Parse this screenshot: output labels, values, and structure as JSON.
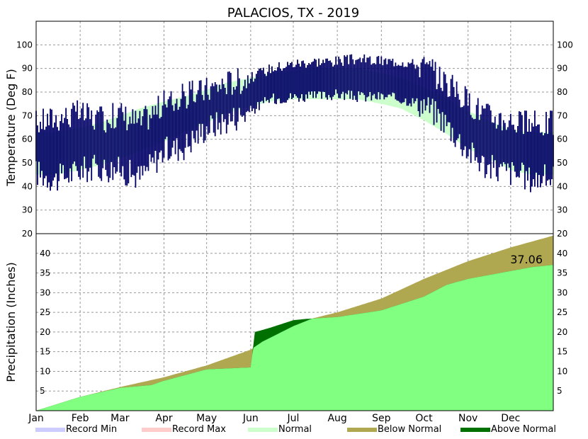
{
  "chart_data": {
    "title": "PALACIOS, TX - 2019",
    "months": [
      "Jan",
      "Feb",
      "Mar",
      "Apr",
      "May",
      "Jun",
      "Jul",
      "Aug",
      "Sep",
      "Oct",
      "Nov",
      "Dec"
    ],
    "temperature": {
      "type": "bar",
      "ylabel": "Temperature (Deg F)",
      "ylim": [
        20,
        110
      ],
      "yticks": [
        "30",
        "40",
        "50",
        "60",
        "70",
        "80",
        "90",
        "100"
      ],
      "normal_band": {
        "doy": [
          1,
          15,
          32,
          46,
          60,
          74,
          91,
          105,
          121,
          135,
          152,
          166,
          182,
          196,
          213,
          227,
          244,
          258,
          274,
          288,
          305,
          319,
          335,
          349,
          365
        ],
        "low": [
          45,
          45,
          47,
          49,
          52,
          55,
          59,
          63,
          67,
          71,
          74,
          76,
          77,
          77,
          77,
          77,
          75,
          73,
          68,
          63,
          56,
          52,
          47,
          45,
          45
        ],
        "high": [
          63,
          63,
          65,
          67,
          70,
          73,
          76,
          78,
          81,
          84,
          86,
          88,
          89,
          90,
          90,
          90,
          88,
          86,
          82,
          78,
          72,
          68,
          64,
          63,
          63
        ]
      },
      "observed_anchors": {
        "doy": [
          1,
          15,
          32,
          46,
          60,
          74,
          91,
          105,
          121,
          135,
          152,
          166,
          182,
          196,
          213,
          227,
          244,
          258,
          274,
          288,
          305,
          319,
          335,
          349,
          365
        ],
        "low": [
          46,
          43,
          47,
          48,
          47,
          44,
          55,
          57,
          65,
          68,
          72,
          77,
          78,
          78,
          79,
          78,
          78,
          77,
          75,
          68,
          55,
          48,
          46,
          43,
          44
        ],
        "high": [
          66,
          68,
          70,
          67,
          70,
          66,
          74,
          77,
          80,
          83,
          85,
          89,
          91,
          92,
          92,
          93,
          92,
          92,
          90,
          84,
          75,
          69,
          67,
          65,
          66
        ]
      },
      "series_colors": {
        "observed": "#000066",
        "normal": "#ccffcc",
        "record_min": "#ccccff",
        "record_max": "#ffcccc"
      }
    },
    "precipitation": {
      "type": "area",
      "ylabel": "Precipitation (Inches)",
      "ylim": [
        0,
        45
      ],
      "yticks": [
        "5",
        "10",
        "15",
        "20",
        "25",
        "30",
        "35",
        "40"
      ],
      "right_yticks": [
        "5",
        "10",
        "15",
        "20",
        "25",
        "30",
        "35",
        "40",
        "20"
      ],
      "normal_cumulative": {
        "doy": [
          1,
          32,
          60,
          91,
          121,
          152,
          160,
          182,
          196,
          213,
          244,
          274,
          305,
          335,
          365
        ],
        "value": [
          0,
          3.5,
          6.0,
          8.5,
          11.5,
          15.5,
          17.5,
          21.5,
          23.5,
          25.0,
          28.5,
          33.5,
          38.0,
          41.5,
          44.5
        ]
      },
      "observed_cumulative": {
        "doy": [
          1,
          32,
          60,
          82,
          90,
          121,
          152,
          155,
          165,
          182,
          190,
          213,
          244,
          274,
          290,
          305,
          320,
          335,
          350,
          365
        ],
        "value": [
          0,
          3.5,
          5.8,
          6.5,
          7.5,
          10.5,
          11.0,
          20.0,
          21.0,
          23.0,
          23.3,
          23.8,
          25.5,
          29.0,
          32.0,
          33.5,
          34.5,
          35.5,
          36.5,
          37.06
        ]
      },
      "final_total_label": "37.06",
      "colors": {
        "normal": "#80ff80",
        "below_normal": "#b0a850",
        "above_normal": "#007000"
      }
    },
    "legend": [
      {
        "label": "Record Min",
        "color": "#ccccff"
      },
      {
        "label": "Record Max",
        "color": "#ffcccc"
      },
      {
        "label": "Normal",
        "color": "#ccffcc"
      },
      {
        "label": "Below Normal",
        "color": "#b0a850"
      },
      {
        "label": "Above Normal",
        "color": "#007000"
      }
    ],
    "grid": true
  }
}
